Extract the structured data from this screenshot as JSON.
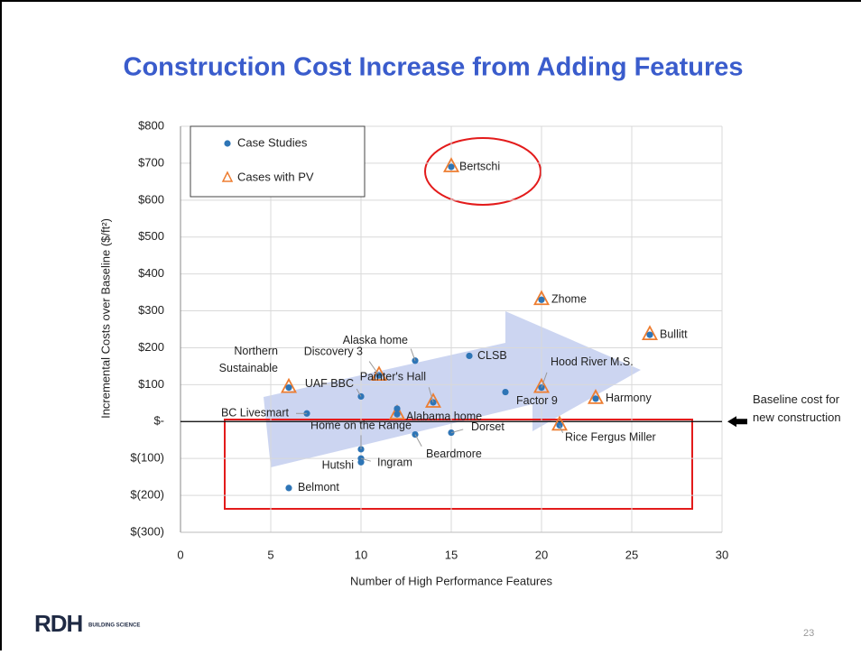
{
  "title": "Construction Cost Increase from Adding Features",
  "page_number": "23",
  "logo": {
    "mark": "RDH",
    "text": "BUILDING SCIENCE"
  },
  "chart_data": {
    "type": "scatter",
    "x_label": "Number of High Performance Features",
    "y_label": "Incremental Costs over Baseline ($/ft²)",
    "xlim": [
      0,
      30
    ],
    "xticks": [
      0,
      5,
      10,
      15,
      20,
      25,
      30
    ],
    "ylim": [
      -300,
      800
    ],
    "yticks": [
      {
        "value": -300,
        "label": "$(300)"
      },
      {
        "value": -200,
        "label": "$(200)"
      },
      {
        "value": -100,
        "label": "$(100)"
      },
      {
        "value": 0,
        "label": "$-"
      },
      {
        "value": 100,
        "label": "$100"
      },
      {
        "value": 200,
        "label": "$200"
      },
      {
        "value": 300,
        "label": "$300"
      },
      {
        "value": 400,
        "label": "$400"
      },
      {
        "value": 500,
        "label": "$500"
      },
      {
        "value": 600,
        "label": "$600"
      },
      {
        "value": 700,
        "label": "$700"
      },
      {
        "value": 800,
        "label": "$800"
      }
    ],
    "grid": true,
    "legend": "top-left",
    "series": [
      {
        "name": "Case Studies",
        "color": "#2e75b6",
        "marker": "circle",
        "x": [
          15,
          20,
          26,
          16,
          13,
          11,
          6,
          10,
          20,
          18,
          23,
          14,
          12,
          12,
          7,
          21,
          15,
          13,
          10,
          10,
          10,
          6
        ],
        "values": [
          690,
          330,
          235,
          178,
          165,
          125,
          92,
          68,
          92,
          80,
          62,
          52,
          35,
          20,
          22,
          -10,
          -30,
          -35,
          -75,
          -100,
          -110,
          -180
        ],
        "labels": [
          "Bertschi",
          "Zhome",
          "Bullitt",
          "CLSB",
          "Alaska home",
          "Discovery 3",
          "Northern Sustainable",
          "UAF BBC",
          "Hood River M.S.",
          "Factor 9",
          "Harmony",
          "Painter's Hall",
          "Alabama home",
          null,
          "BC Livesmart",
          "Rice Fergus Miller",
          "Dorset",
          "Beardmore",
          "Home on the Range",
          "Ingram",
          "Hutshi",
          "Belmont"
        ]
      },
      {
        "name": "Cases with PV",
        "color": "#ed7d31",
        "marker": "triangle",
        "x": [
          15,
          20,
          26,
          11,
          6,
          20,
          23,
          14,
          12,
          21
        ],
        "values": [
          690,
          330,
          235,
          125,
          92,
          92,
          62,
          52,
          20,
          -10
        ]
      }
    ],
    "annotation": "Baseline cost for new construction"
  }
}
